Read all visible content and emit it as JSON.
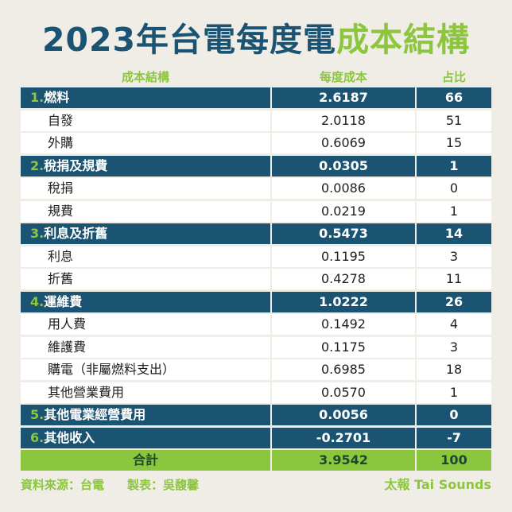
{
  "title": {
    "part1": "2023年台電每度電",
    "part2": "成本結構"
  },
  "header": {
    "col_structure": "成本結構",
    "col_cost": "每度成本",
    "col_share": "占比"
  },
  "rows": [
    {
      "kind": "main",
      "num": "1.",
      "label": "燃料",
      "cost": "2.6187",
      "share": "66"
    },
    {
      "kind": "sub",
      "label": "自發",
      "cost": "2.0118",
      "share": "51"
    },
    {
      "kind": "sub",
      "label": "外購",
      "cost": "0.6069",
      "share": "15"
    },
    {
      "kind": "main",
      "num": "2.",
      "label": "稅捐及規費",
      "cost": "0.0305",
      "share": "1"
    },
    {
      "kind": "sub",
      "label": "稅捐",
      "cost": "0.0086",
      "share": "0"
    },
    {
      "kind": "sub",
      "label": "規費",
      "cost": "0.0219",
      "share": "1"
    },
    {
      "kind": "main",
      "num": "3.",
      "label": "利息及折舊",
      "cost": "0.5473",
      "share": "14"
    },
    {
      "kind": "sub",
      "label": "利息",
      "cost": "0.1195",
      "share": "3"
    },
    {
      "kind": "sub",
      "label": "折舊",
      "cost": "0.4278",
      "share": "11"
    },
    {
      "kind": "main",
      "num": "4.",
      "label": "運維費",
      "cost": "1.0222",
      "share": "26"
    },
    {
      "kind": "sub",
      "label": "用人費",
      "cost": "0.1492",
      "share": "4"
    },
    {
      "kind": "sub",
      "label": "維護費",
      "cost": "0.1175",
      "share": "3"
    },
    {
      "kind": "sub",
      "label": "購電（非屬燃料支出）",
      "cost": "0.6985",
      "share": "18"
    },
    {
      "kind": "sub",
      "label": "其他營業費用",
      "cost": "0.0570",
      "share": "1"
    },
    {
      "kind": "main",
      "num": "5.",
      "label": "其他電業經營費用",
      "cost": "0.0056",
      "share": "0"
    },
    {
      "kind": "main",
      "num": "6.",
      "label": "其他收入",
      "cost": "-0.2701",
      "share": "-7"
    },
    {
      "kind": "total",
      "label": "合計",
      "cost": "3.9542",
      "share": "100"
    }
  ],
  "footer": {
    "source": "資料來源：台電",
    "maker": "製表：吳馥馨",
    "brand": "太報 Tai Sounds"
  }
}
